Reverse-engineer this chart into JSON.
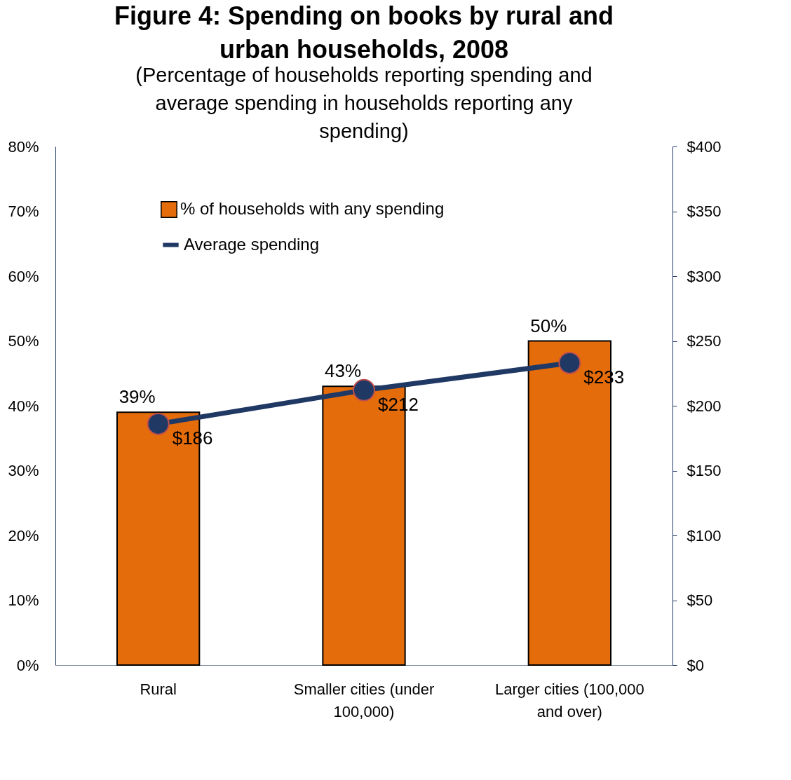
{
  "chart_data": {
    "type": "bar",
    "title": "Figure 4: Spending on books by rural and urban households, 2008",
    "subtitle": "(Percentage of households reporting spending and average spending in households reporting any spending)",
    "categories": [
      "Rural",
      "Smaller cities (under 100,000)",
      "Larger cities (100,000 and over)"
    ],
    "series": [
      {
        "name": "% of households with any spending",
        "color": "#e46c0a",
        "values": [
          39,
          43,
          50
        ],
        "value_labels": [
          "39%",
          "43%",
          "50%"
        ]
      },
      {
        "name": "Average spending",
        "type": "line",
        "axis": "y2",
        "color": "#1f3864",
        "values": [
          186,
          212,
          233
        ],
        "value_labels": [
          "$186",
          "$212",
          "$233"
        ]
      }
    ],
    "ylim": [
      0,
      80
    ],
    "yticks": [
      {
        "value": 0,
        "label": "0%"
      },
      {
        "value": 10,
        "label": "10%"
      },
      {
        "value": 20,
        "label": "20%"
      },
      {
        "value": 30,
        "label": "30%"
      },
      {
        "value": 40,
        "label": "40%"
      },
      {
        "value": 50,
        "label": "50%"
      },
      {
        "value": 60,
        "label": "60%"
      },
      {
        "value": 70,
        "label": "70%"
      },
      {
        "value": 80,
        "label": "80%"
      }
    ],
    "y2lim": [
      0,
      400
    ],
    "y2ticks": [
      {
        "value": 0,
        "label": "$0"
      },
      {
        "value": 50,
        "label": "$50"
      },
      {
        "value": 100,
        "label": "$100"
      },
      {
        "value": 150,
        "label": "$150"
      },
      {
        "value": 200,
        "label": "$200"
      },
      {
        "value": 250,
        "label": "$250"
      },
      {
        "value": 300,
        "label": "$300"
      },
      {
        "value": 350,
        "label": "$350"
      },
      {
        "value": 400,
        "label": "$400"
      }
    ],
    "grid": false,
    "legend": "top left",
    "marker": "circle"
  }
}
